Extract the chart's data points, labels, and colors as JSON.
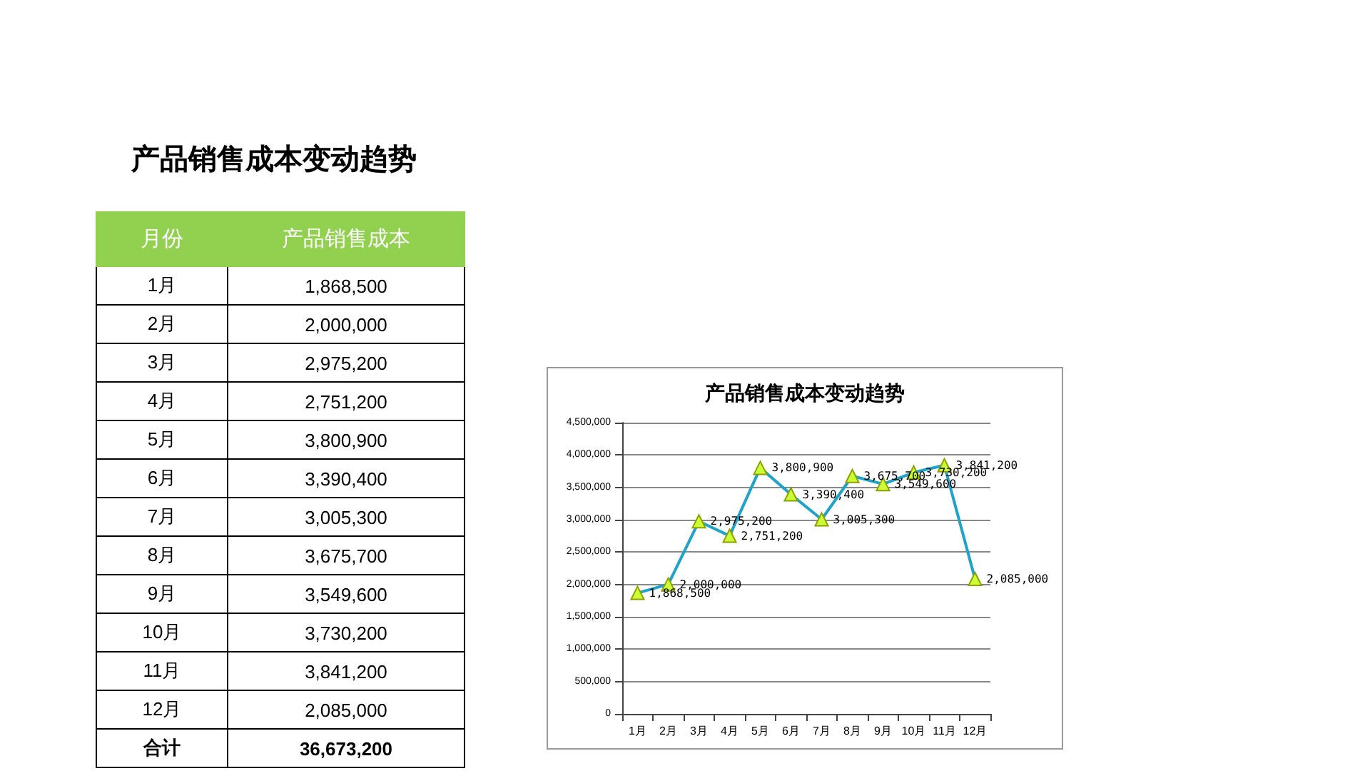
{
  "chart_data": {
    "type": "line",
    "title": "产品销售成本变动趋势",
    "categories": [
      "1月",
      "2月",
      "3月",
      "4月",
      "5月",
      "6月",
      "7月",
      "8月",
      "9月",
      "10月",
      "11月",
      "12月"
    ],
    "values": [
      1868500,
      2000000,
      2975200,
      2751200,
      3800900,
      3390400,
      3005300,
      3675700,
      3549600,
      3730200,
      3841200,
      2085000
    ],
    "value_labels": [
      "1,868,500",
      "2,000,000",
      "2,975,200",
      "2,751,200",
      "3,800,900",
      "3,390,400",
      "3,005,300",
      "3,675,700",
      "3,549,600",
      "3,730,200",
      "3,841,200",
      "2,085,000"
    ],
    "color": "#1fa3c9",
    "ylim": [
      0,
      4500000
    ],
    "yticks": [
      0,
      {
        "value": 500000,
        "label": "500,000"
      },
      {
        "value": 1000000,
        "label": "1,000,000"
      },
      {
        "value": 1500000,
        "label": "1,500,000"
      },
      {
        "value": 2000000,
        "label": "2,000,000"
      },
      {
        "value": 2500000,
        "label": "2,500,000"
      },
      {
        "value": 3000000,
        "label": "3,000,000"
      },
      {
        "value": 3500000,
        "label": "3,500,000"
      },
      {
        "value": 4000000,
        "label": "4,000,000"
      },
      {
        "value": 4500000,
        "label": "4,500,000"
      }
    ],
    "grid": "y",
    "marker": "triangle",
    "line_style": "solid",
    "annotations": [
      "产品销售成本变动趋势",
      "月份",
      "产品销售成本",
      "合计",
      "36,673,200"
    ]
  }
}
